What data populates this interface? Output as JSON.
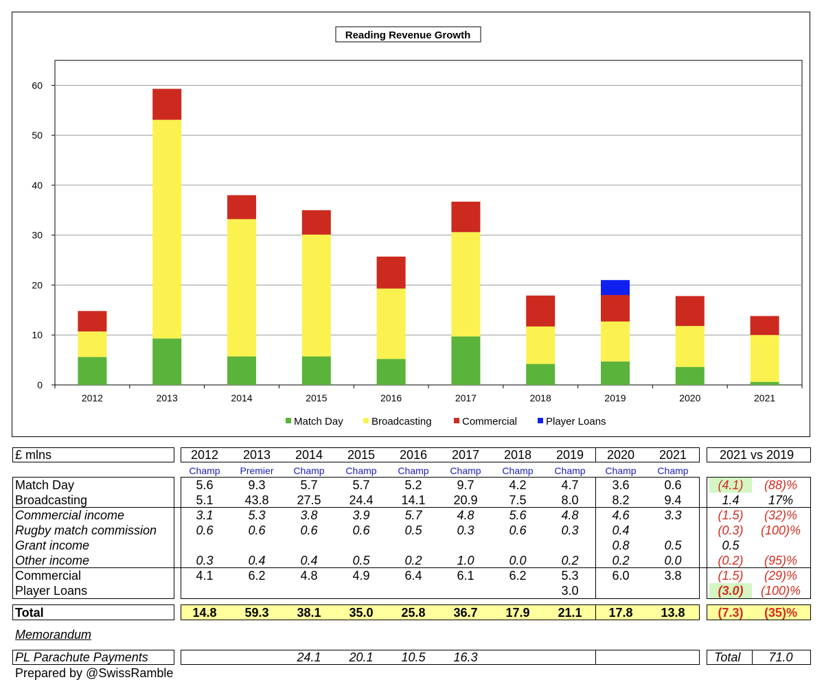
{
  "chart_data": {
    "type": "bar",
    "stacked": true,
    "title": "Reading Revenue Growth",
    "categories": [
      "2012",
      "2013",
      "2014",
      "2015",
      "2016",
      "2017",
      "2018",
      "2019",
      "2020",
      "2021"
    ],
    "ylim": [
      0,
      65
    ],
    "yticks": [
      0,
      10,
      20,
      30,
      40,
      50,
      60
    ],
    "grid": true,
    "legend_position": "bottom",
    "series": [
      {
        "name": "Match Day",
        "color": "#5ab33a",
        "values": [
          5.6,
          9.3,
          5.7,
          5.7,
          5.2,
          9.7,
          4.2,
          4.7,
          3.6,
          0.6
        ]
      },
      {
        "name": "Broadcasting",
        "color": "#fbf250",
        "values": [
          5.1,
          43.8,
          27.5,
          24.4,
          14.1,
          20.9,
          7.5,
          8.0,
          8.2,
          9.4
        ]
      },
      {
        "name": "Commercial",
        "color": "#cc2a1f",
        "values": [
          4.1,
          6.2,
          4.8,
          4.9,
          6.4,
          6.1,
          6.2,
          5.3,
          6.0,
          3.8
        ]
      },
      {
        "name": "Player Loans",
        "color": "#1020ee",
        "values": [
          0,
          0,
          0,
          0,
          0,
          0,
          0,
          3.0,
          0,
          0
        ]
      }
    ]
  },
  "table": {
    "unit_label": "£ mlns",
    "years": [
      "2012",
      "2013",
      "2014",
      "2015",
      "2016",
      "2017",
      "2018",
      "2019",
      "2020",
      "2021"
    ],
    "divisions": [
      "Champ",
      "Premier",
      "Champ",
      "Champ",
      "Champ",
      "Champ",
      "Champ",
      "Champ",
      "Champ",
      "Champ"
    ],
    "compare_header": "2021 vs 2019",
    "rows": [
      {
        "label": "Match Day",
        "italic": false,
        "values": [
          "5.6",
          "9.3",
          "5.7",
          "5.7",
          "5.2",
          "9.7",
          "4.2",
          "4.7",
          "3.6",
          "0.6"
        ],
        "diff": "(4.1)",
        "pct": "(88)%",
        "neg": true,
        "diff_green": true
      },
      {
        "label": "Broadcasting",
        "italic": false,
        "values": [
          "5.1",
          "43.8",
          "27.5",
          "24.4",
          "14.1",
          "20.9",
          "7.5",
          "8.0",
          "8.2",
          "9.4"
        ],
        "diff": "1.4",
        "pct": "17%",
        "neg": false
      },
      {
        "label": "Commercial income",
        "italic": true,
        "values": [
          "3.1",
          "5.3",
          "3.8",
          "3.9",
          "5.7",
          "4.8",
          "5.6",
          "4.8",
          "4.6",
          "3.3"
        ],
        "diff": "(1.5)",
        "pct": "(32)%",
        "neg": true
      },
      {
        "label": "Rugby match commission",
        "italic": true,
        "values": [
          "0.6",
          "0.6",
          "0.6",
          "0.6",
          "0.5",
          "0.3",
          "0.6",
          "0.3",
          "0.4",
          ""
        ],
        "diff": "(0.3)",
        "pct": "(100)%",
        "neg": true
      },
      {
        "label": "Grant income",
        "italic": true,
        "values": [
          "",
          "",
          "",
          "",
          "",
          "",
          "",
          "",
          "0.8",
          "0.5"
        ],
        "diff": "0.5",
        "pct": "",
        "neg": false
      },
      {
        "label": "Other income",
        "italic": true,
        "values": [
          "0.3",
          "0.4",
          "0.4",
          "0.5",
          "0.2",
          "1.0",
          "0.0",
          "0.2",
          "0.2",
          "0.0"
        ],
        "diff": "(0.2)",
        "pct": "(95)%",
        "neg": true
      },
      {
        "label": "Commercial",
        "italic": false,
        "values": [
          "4.1",
          "6.2",
          "4.8",
          "4.9",
          "6.4",
          "6.1",
          "6.2",
          "5.3",
          "6.0",
          "3.8"
        ],
        "diff": "(1.5)",
        "pct": "(29)%",
        "neg": true
      },
      {
        "label": "Player Loans",
        "italic": false,
        "values": [
          "",
          "",
          "",
          "",
          "",
          "",
          "",
          "3.0",
          "",
          ""
        ],
        "diff": "(3.0)",
        "pct": "(100)%",
        "neg": true,
        "diff_green": true,
        "diff_bold": true
      }
    ],
    "total": {
      "label": "Total",
      "values": [
        "14.8",
        "59.3",
        "38.1",
        "35.0",
        "25.8",
        "36.7",
        "17.9",
        "21.1",
        "17.8",
        "13.8"
      ],
      "diff": "(7.3)",
      "pct": "(35)%"
    },
    "memorandum_label": "Memorandum",
    "parachute": {
      "label": "PL Parachute Payments",
      "values": [
        "",
        "",
        "24.1",
        "20.1",
        "10.5",
        "16.3",
        "",
        "",
        "",
        ""
      ],
      "total_label": "Total",
      "total_value": "71.0"
    }
  },
  "footer": "Prepared by @SwissRamble"
}
